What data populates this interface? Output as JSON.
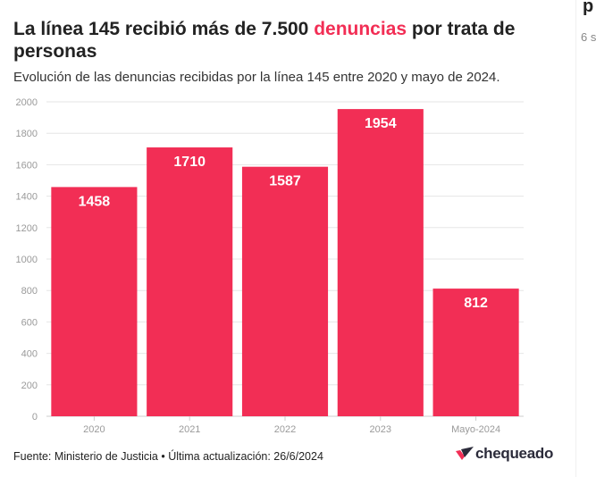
{
  "title": {
    "before": "La línea 145 recibió más de 7.500 ",
    "highlight": "denuncias",
    "after": " por trata de personas"
  },
  "subtitle": "Evolución de las denuncias recibidas por la línea 145 entre 2020 y mayo de 2024.",
  "source": "Fuente: Ministerio de Justicia • Última actualización: 26/6/2024",
  "logo": {
    "text": "chequeado",
    "icon": "chequeado-logo-icon"
  },
  "edge": {
    "glyph": "p",
    "text": "6 s"
  },
  "colors": {
    "bar": "#f22e55",
    "highlight": "#f22e55",
    "grid": "#e6e6e6",
    "axis": "#9a9a9a"
  },
  "chart_data": {
    "type": "bar",
    "title": "La línea 145 recibió más de 7.500 denuncias por trata de personas",
    "categories": [
      "2020",
      "2021",
      "2022",
      "2023",
      "Mayo-2024"
    ],
    "values": [
      1458,
      1710,
      1587,
      1954,
      812
    ],
    "ylim": [
      0,
      2000
    ],
    "yticks": [
      0,
      200,
      400,
      600,
      800,
      1000,
      1200,
      1400,
      1600,
      1800,
      2000
    ],
    "xlabel": "",
    "ylabel": "",
    "grid": true,
    "data_labels": [
      "1458",
      "1710",
      "1587",
      "1954",
      "812"
    ]
  }
}
